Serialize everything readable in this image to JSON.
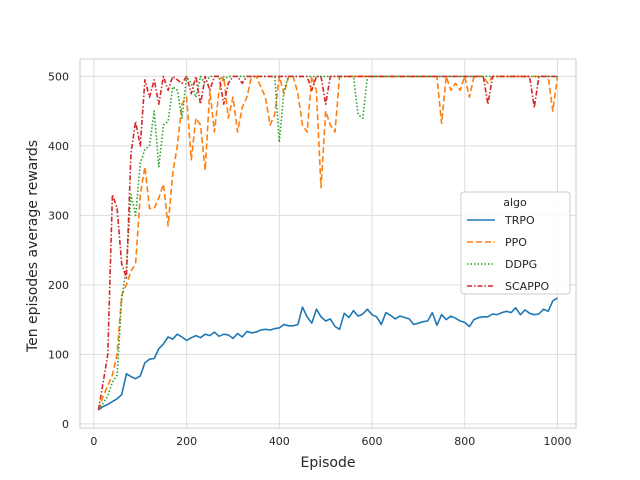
{
  "chart_data": {
    "type": "line",
    "title": "",
    "xlabel": "Episode",
    "ylabel": "Ten episodes average rewards",
    "xlim": [
      -30,
      1040
    ],
    "ylim": [
      -6,
      525
    ],
    "x_ticks": [
      0,
      200,
      400,
      600,
      800,
      1000
    ],
    "y_ticks": [
      0,
      100,
      200,
      300,
      400,
      500
    ],
    "grid": true,
    "legend": {
      "title": "algo",
      "position": "right"
    },
    "x": [
      10,
      20,
      30,
      40,
      50,
      60,
      70,
      80,
      90,
      100,
      110,
      120,
      130,
      140,
      150,
      160,
      170,
      180,
      190,
      200,
      210,
      220,
      230,
      240,
      250,
      260,
      270,
      280,
      290,
      300,
      310,
      320,
      330,
      340,
      350,
      360,
      370,
      380,
      390,
      400,
      410,
      420,
      430,
      440,
      450,
      460,
      470,
      480,
      490,
      500,
      510,
      520,
      530,
      540,
      550,
      560,
      570,
      580,
      590,
      600,
      610,
      620,
      630,
      640,
      650,
      660,
      670,
      680,
      690,
      700,
      710,
      720,
      730,
      740,
      750,
      760,
      770,
      780,
      790,
      800,
      810,
      820,
      830,
      840,
      850,
      860,
      870,
      880,
      890,
      900,
      910,
      920,
      930,
      940,
      950,
      960,
      970,
      980,
      990,
      1000
    ],
    "series": [
      {
        "name": "TRPO",
        "color": "#1f77b4",
        "dash": "solid",
        "values": [
          20,
          25,
          28,
          32,
          36,
          42,
          72,
          68,
          65,
          69,
          88,
          93,
          94,
          108,
          115,
          125,
          122,
          129,
          125,
          120,
          124,
          127,
          124,
          129,
          127,
          132,
          126,
          129,
          128,
          123,
          130,
          125,
          133,
          131,
          132,
          135,
          136,
          135,
          137,
          138,
          143,
          141,
          141,
          143,
          168,
          154,
          145,
          165,
          154,
          148,
          151,
          140,
          136,
          159,
          153,
          163,
          155,
          158,
          165,
          157,
          154,
          143,
          160,
          156,
          151,
          155,
          153,
          151,
          143,
          145,
          147,
          148,
          160,
          142,
          157,
          150,
          155,
          152,
          148,
          146,
          140,
          150,
          153,
          154,
          154,
          158,
          157,
          160,
          162,
          160,
          167,
          157,
          164,
          159,
          157,
          158,
          165,
          162,
          177,
          181
        ]
      },
      {
        "name": "PPO",
        "color": "#ff7f0e",
        "dash": "dashed",
        "values": [
          20,
          40,
          55,
          70,
          100,
          185,
          200,
          220,
          230,
          330,
          370,
          310,
          310,
          325,
          345,
          285,
          360,
          400,
          460,
          470,
          380,
          440,
          430,
          365,
          480,
          420,
          480,
          500,
          440,
          470,
          420,
          455,
          470,
          500,
          500,
          485,
          470,
          430,
          445,
          500,
          475,
          500,
          500,
          475,
          430,
          420,
          500,
          480,
          340,
          450,
          430,
          420,
          500,
          500,
          500,
          500,
          500,
          500,
          500,
          500,
          500,
          500,
          500,
          500,
          500,
          500,
          500,
          500,
          500,
          500,
          500,
          500,
          500,
          500,
          432,
          500,
          480,
          490,
          480,
          500,
          470,
          500,
          500,
          500,
          490,
          500,
          500,
          500,
          500,
          500,
          500,
          500,
          500,
          500,
          500,
          500,
          500,
          500,
          450,
          500
        ]
      },
      {
        "name": "DDPG",
        "color": "#2ca02c",
        "dash": "dotted",
        "values": [
          20,
          30,
          40,
          60,
          70,
          180,
          225,
          330,
          300,
          375,
          395,
          400,
          450,
          370,
          430,
          435,
          485,
          480,
          440,
          500,
          490,
          470,
          500,
          490,
          500,
          500,
          500,
          495,
          500,
          500,
          500,
          500,
          500,
          500,
          500,
          500,
          500,
          500,
          500,
          405,
          480,
          500,
          500,
          500,
          500,
          500,
          500,
          500,
          500,
          500,
          500,
          500,
          500,
          500,
          500,
          500,
          445,
          440,
          500,
          500,
          500,
          500,
          500,
          500,
          500,
          500,
          500,
          500,
          500,
          500,
          500,
          500,
          500,
          500,
          500,
          500,
          500,
          500,
          500,
          500,
          500,
          500,
          500,
          500,
          500,
          500,
          500,
          500,
          500,
          500,
          500,
          500,
          500,
          500,
          500,
          500,
          500,
          500,
          500,
          500
        ]
      },
      {
        "name": "SCAPPO",
        "color": "#d62728",
        "dash": "dashdot",
        "values": [
          20,
          60,
          100,
          330,
          310,
          230,
          210,
          390,
          435,
          400,
          495,
          470,
          495,
          460,
          500,
          480,
          500,
          495,
          490,
          500,
          475,
          500,
          460,
          500,
          480,
          500,
          500,
          460,
          490,
          500,
          500,
          490,
          500,
          500,
          500,
          500,
          500,
          500,
          500,
          500,
          500,
          500,
          500,
          500,
          500,
          500,
          480,
          500,
          500,
          460,
          500,
          500,
          500,
          500,
          500,
          500,
          500,
          500,
          500,
          500,
          500,
          500,
          500,
          500,
          500,
          500,
          500,
          500,
          500,
          500,
          500,
          500,
          500,
          500,
          500,
          500,
          500,
          500,
          500,
          500,
          500,
          500,
          500,
          500,
          460,
          500,
          500,
          500,
          500,
          500,
          500,
          500,
          500,
          500,
          455,
          500,
          500,
          500,
          500,
          500
        ]
      }
    ]
  }
}
